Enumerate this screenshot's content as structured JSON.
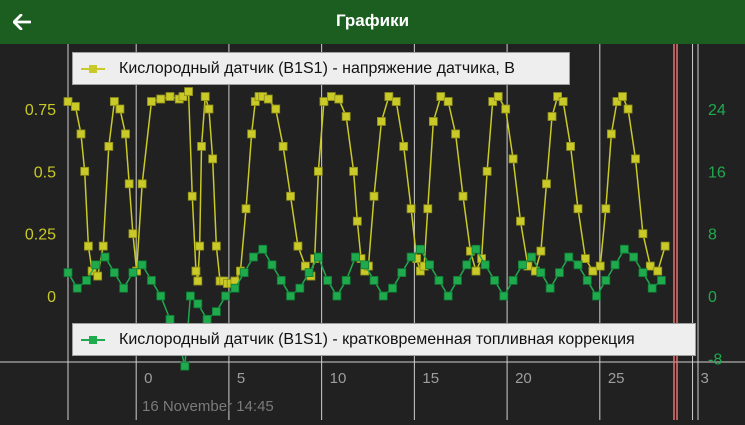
{
  "header": {
    "title": "Графики",
    "back_icon": "arrow-left-icon"
  },
  "chart_data": {
    "type": "line",
    "x_ticks": [
      "0",
      "5",
      "10",
      "15",
      "20",
      "25",
      "3"
    ],
    "x_range": [
      -4,
      29
    ],
    "timestamp_label": "16 November 14:45",
    "left_axis": {
      "ticks": [
        "0",
        "0.25",
        "0.5",
        "0.75"
      ],
      "range": [
        0,
        0.85
      ],
      "color": "#c9c927"
    },
    "right_axis": {
      "ticks": [
        "-8",
        "0",
        "8",
        "16",
        "24"
      ],
      "range": [
        -8,
        26
      ],
      "color": "#1faa4e"
    },
    "series": [
      {
        "name": "Кислородный датчик (B1S1) - напряжение датчика, В",
        "color": "#c9c927",
        "axis": "left",
        "x": [
          -4,
          -3.6,
          -3.3,
          -3.1,
          -2.9,
          -2.7,
          -2.4,
          -2.1,
          -1.8,
          -1.5,
          -1.2,
          -0.9,
          -0.7,
          -0.5,
          -0.3,
          0,
          0.5,
          1,
          1.5,
          2,
          2.2,
          2.5,
          2.7,
          2.9,
          3,
          3.1,
          3.2,
          3.4,
          3.6,
          3.8,
          4,
          4.2,
          4.4,
          4.6,
          4.8,
          5,
          5.3,
          5.6,
          5.9,
          6.1,
          6.3,
          6.5,
          6.8,
          7.2,
          7.6,
          8,
          8.4,
          8.8,
          9.1,
          9.3,
          9.5,
          9.8,
          10.2,
          10.6,
          11,
          11.4,
          11.6,
          11.8,
          12,
          12.2,
          12.5,
          12.9,
          13.3,
          13.7,
          14.1,
          14.5,
          14.8,
          15,
          15.2,
          15.4,
          15.7,
          16.1,
          16.5,
          16.9,
          17.3,
          17.7,
          18,
          18.3,
          18.6,
          18.9,
          19.2,
          19.6,
          20,
          20.4,
          20.8,
          21.2,
          21.5,
          21.8,
          22.1,
          22.4,
          22.7,
          23.1,
          23.5,
          23.9,
          24.3,
          24.7,
          25,
          25.3,
          25.6,
          25.9,
          26.2,
          26.6,
          27,
          27.4,
          27.8,
          28.2
        ],
        "values": [
          0.78,
          0.76,
          0.65,
          0.5,
          0.2,
          0.1,
          0.08,
          0.2,
          0.6,
          0.78,
          0.75,
          0.65,
          0.45,
          0.25,
          0.1,
          0.45,
          0.78,
          0.79,
          0.8,
          0.79,
          0.8,
          0.82,
          0.4,
          0.1,
          0.06,
          0.2,
          0.6,
          0.8,
          0.75,
          0.55,
          0.2,
          0.06,
          0.06,
          0.05,
          0.05,
          0.06,
          0.1,
          0.35,
          0.65,
          0.78,
          0.8,
          0.8,
          0.79,
          0.75,
          0.6,
          0.4,
          0.2,
          0.12,
          0.08,
          0.15,
          0.5,
          0.78,
          0.8,
          0.79,
          0.72,
          0.5,
          0.3,
          0.15,
          0.1,
          0.12,
          0.4,
          0.7,
          0.8,
          0.78,
          0.6,
          0.35,
          0.15,
          0.1,
          0.12,
          0.35,
          0.7,
          0.8,
          0.78,
          0.65,
          0.4,
          0.18,
          0.1,
          0.15,
          0.5,
          0.78,
          0.8,
          0.75,
          0.55,
          0.3,
          0.12,
          0.1,
          0.18,
          0.45,
          0.72,
          0.8,
          0.78,
          0.6,
          0.35,
          0.15,
          0.1,
          0.12,
          0.35,
          0.65,
          0.78,
          0.8,
          0.75,
          0.55,
          0.25,
          0.12,
          0.1,
          0.2
        ]
      },
      {
        "name": "Кислородный датчик (B1S1) - кратковременная топливная коррекция",
        "color": "#1faa4e",
        "axis": "right",
        "x": [
          -4,
          -3.5,
          -3,
          -2.5,
          -2,
          -1.5,
          -1,
          -0.5,
          0,
          0.5,
          1,
          1.5,
          2,
          2.3,
          2.6,
          3,
          3.5,
          4,
          4.5,
          5,
          5.5,
          6,
          6.5,
          7,
          7.5,
          8,
          8.5,
          9,
          9.5,
          10,
          10.5,
          11,
          11.5,
          12,
          12.5,
          13,
          13.5,
          14,
          14.5,
          15,
          15.5,
          16,
          16.5,
          17,
          17.5,
          18,
          18.5,
          19,
          19.5,
          20,
          20.5,
          21,
          21.5,
          22,
          22.5,
          23,
          23.5,
          24,
          24.5,
          25,
          25.5,
          26,
          26.5,
          27,
          27.5,
          28
        ],
        "values": [
          3,
          1,
          2,
          4,
          5,
          3,
          1,
          3,
          4,
          2,
          0,
          -3,
          -6,
          -9,
          0,
          -1,
          -3,
          -2,
          0,
          1,
          3,
          5,
          6,
          4,
          2,
          0,
          1,
          3,
          5,
          2,
          0,
          2,
          5,
          4,
          2,
          0,
          1,
          3,
          5,
          6,
          4,
          2,
          0,
          2,
          4,
          6,
          4,
          2,
          0,
          2,
          4,
          5,
          3,
          1,
          3,
          5,
          4,
          2,
          0,
          2,
          4,
          6,
          5,
          3,
          1,
          2
        ]
      }
    ]
  }
}
